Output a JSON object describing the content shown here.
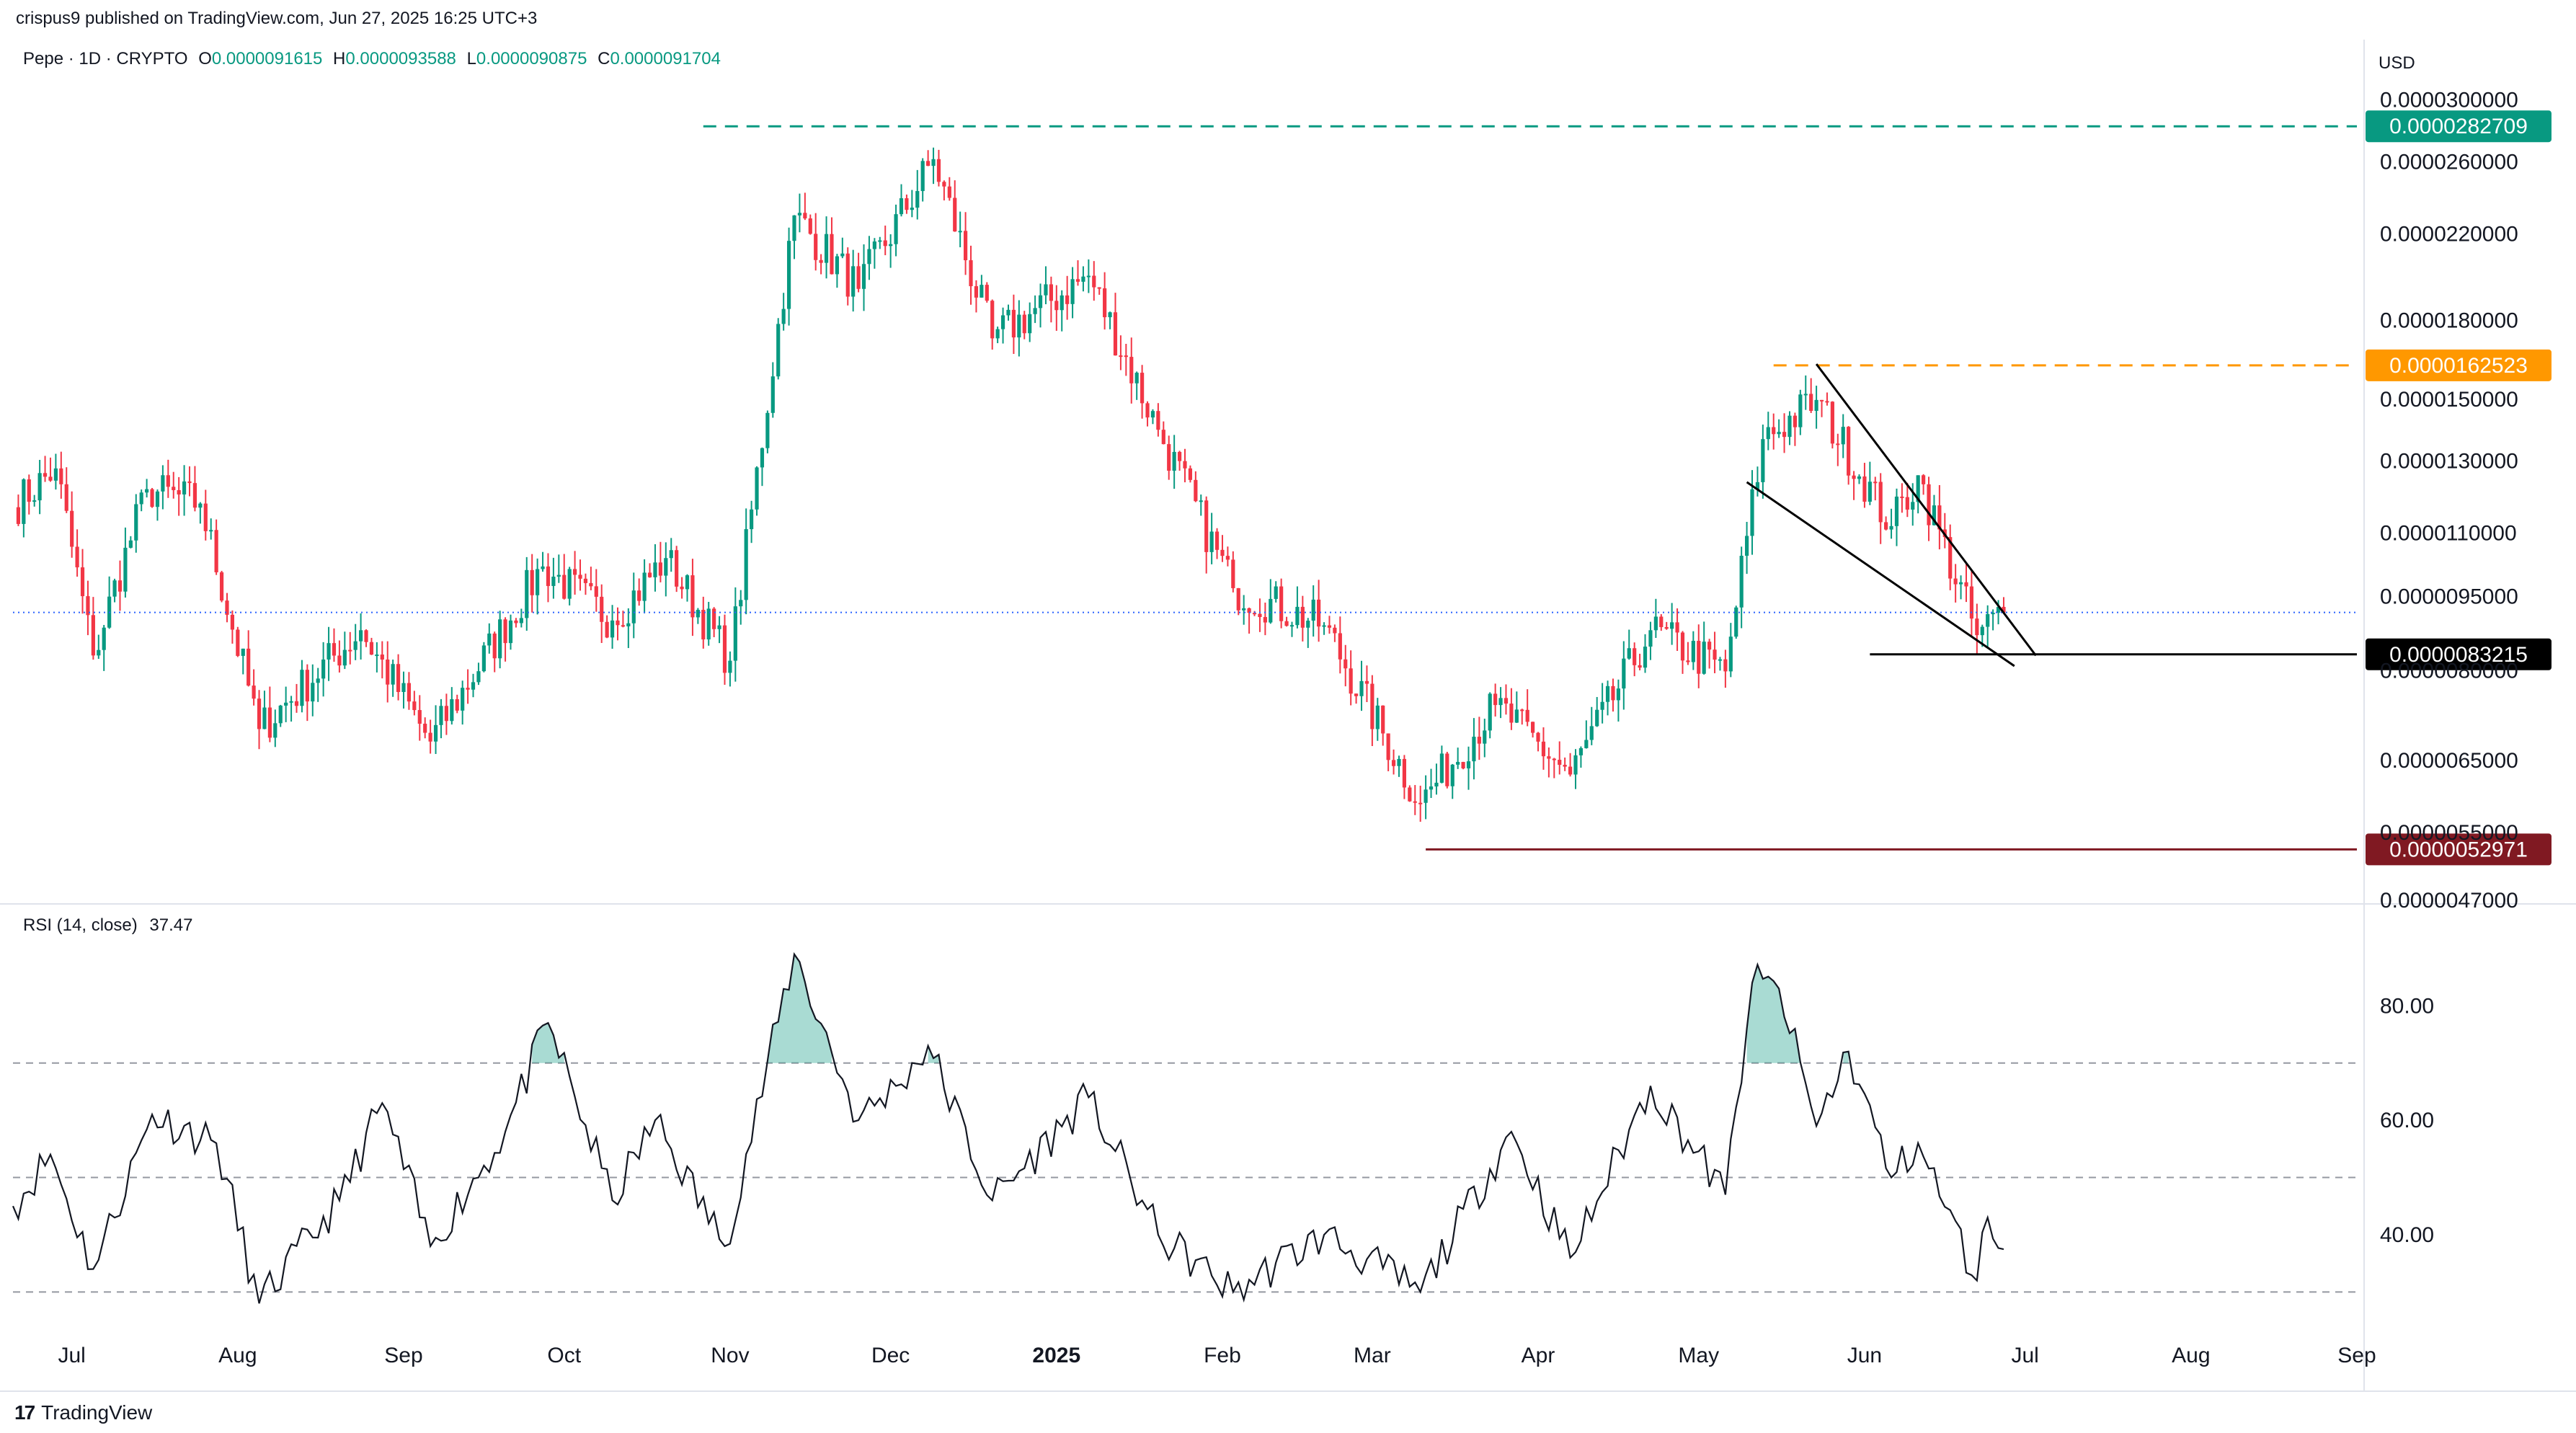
{
  "header": {
    "publisher_text": "crispus9 published on TradingView.com, Jun 27, 2025 16:25 UTC+3"
  },
  "symbol_legend": {
    "symbol": "Pepe · 1D · CRYPTO",
    "o_label": "O",
    "o_value": "0.0000091615",
    "h_label": "H",
    "h_value": "0.0000093588",
    "l_label": "L",
    "l_value": "0.0000090875",
    "c_label": "C",
    "c_value": "0.0000091704"
  },
  "price_axis": {
    "currency": "USD",
    "ticks": [
      "0.0000300000",
      "0.0000260000",
      "0.0000220000",
      "0.0000180000",
      "0.0000150000",
      "0.0000130000",
      "0.0000110000",
      "0.0000095000",
      "0.0000080000",
      "0.0000065000",
      "0.0000055000",
      "0.0000047000"
    ]
  },
  "rsi_legend": {
    "label": "RSI (14, close)",
    "value": "37.47"
  },
  "rsi_axis": {
    "ticks": [
      "80.00",
      "60.00",
      "40.00"
    ]
  },
  "time_axis": {
    "labels": [
      "Jul",
      "Aug",
      "Sep",
      "Oct",
      "Nov",
      "Dec",
      "2025",
      "Feb",
      "Mar",
      "Apr",
      "May",
      "Jun",
      "Jul",
      "Aug",
      "Sep"
    ]
  },
  "footer": {
    "brand": "TradingView",
    "logo": "tv-logo"
  },
  "colors": {
    "up": "#089981",
    "down": "#f23645",
    "green_level": "#089981",
    "orange_level": "#ff9800",
    "red_level": "#801922",
    "black_level": "#000000"
  },
  "chart_data": [
    {
      "type": "candlestick",
      "symbol": "Pepe",
      "timeframe": "1D",
      "y_scale": "log",
      "x_range": [
        "2024-06-20",
        "2025-09-01"
      ],
      "ylim": [
        4.7e-06,
        3.1e-05
      ],
      "anchor_closes": [
        [
          "2024-06-20",
          1.17e-05
        ],
        [
          "2024-06-28",
          1.28e-05
        ],
        [
          "2024-07-05",
          8.3e-06
        ],
        [
          "2024-07-15",
          1.22e-05
        ],
        [
          "2024-07-25",
          1.18e-05
        ],
        [
          "2024-08-05",
          7e-06
        ],
        [
          "2024-08-24",
          8.8e-06
        ],
        [
          "2024-09-06",
          6.8e-06
        ],
        [
          "2024-09-27",
          1.02e-05
        ],
        [
          "2024-10-10",
          9e-06
        ],
        [
          "2024-10-20",
          1.04e-05
        ],
        [
          "2024-11-01",
          8.2e-06
        ],
        [
          "2024-11-13",
          2.3e-05
        ],
        [
          "2024-11-25",
          1.94e-05
        ],
        [
          "2024-12-09",
          2.62e-05
        ],
        [
          "2024-12-20",
          1.73e-05
        ],
        [
          "2025-01-07",
          2e-05
        ],
        [
          "2025-01-20",
          1.4e-05
        ],
        [
          "2025-02-03",
          9.7e-06
        ],
        [
          "2025-02-20",
          8.9e-06
        ],
        [
          "2025-03-10",
          5.9e-06
        ],
        [
          "2025-03-24",
          7.4e-06
        ],
        [
          "2025-04-07",
          6.3e-06
        ],
        [
          "2025-04-22",
          8.8e-06
        ],
        [
          "2025-05-06",
          8e-06
        ],
        [
          "2025-05-13",
          1.37e-05
        ],
        [
          "2025-05-23",
          1.5e-05
        ],
        [
          "2025-06-06",
          1.12e-05
        ],
        [
          "2025-06-11",
          1.26e-05
        ],
        [
          "2025-06-22",
          8.7e-06
        ],
        [
          "2025-06-27",
          9.1704e-06
        ]
      ],
      "levels": [
        {
          "name": "high",
          "value": 2.82709e-05,
          "label": "0.0000282709",
          "style": "dashed",
          "color": "#089981",
          "from": "2024-10-27"
        },
        {
          "name": "resistance",
          "value": 1.62523e-05,
          "label": "0.0000162523",
          "style": "dashed",
          "color": "#ff9800",
          "from": "2025-05-15"
        },
        {
          "name": "support",
          "value": 8.3215e-06,
          "label": "0.0000083215",
          "style": "solid",
          "color": "#000000",
          "from": "2025-06-02"
        },
        {
          "name": "low",
          "value": 5.2971e-06,
          "label": "0.0000052971",
          "style": "solid",
          "color": "#801922",
          "from": "2025-03-11"
        },
        {
          "name": "last",
          "value": 9.1704e-06,
          "style": "dotted",
          "color": "#2962ff"
        }
      ],
      "wedge": {
        "upper": [
          [
            "2025-05-23",
            1.63e-05
          ],
          [
            "2025-07-03",
            8.3e-06
          ]
        ],
        "lower": [
          [
            "2025-05-10",
            1.24e-05
          ],
          [
            "2025-06-29",
            8.1e-06
          ]
        ]
      }
    },
    {
      "type": "line",
      "name": "RSI (14, close)",
      "ylim": [
        24,
        92
      ],
      "bands": [
        30,
        50,
        70
      ],
      "last_value": 37.47,
      "anchors": [
        [
          "2024-06-20",
          45
        ],
        [
          "2024-06-27",
          54
        ],
        [
          "2024-07-05",
          34
        ],
        [
          "2024-07-16",
          61
        ],
        [
          "2024-07-28",
          56
        ],
        [
          "2024-08-05",
          28
        ],
        [
          "2024-08-20",
          46
        ],
        [
          "2024-08-28",
          63
        ],
        [
          "2024-09-06",
          38
        ],
        [
          "2024-09-20",
          58
        ],
        [
          "2024-09-28",
          77
        ],
        [
          "2024-10-10",
          46
        ],
        [
          "2024-10-18",
          60
        ],
        [
          "2024-10-31",
          38
        ],
        [
          "2024-11-13",
          89
        ],
        [
          "2024-11-25",
          60
        ],
        [
          "2024-12-02",
          66
        ],
        [
          "2024-12-08",
          73
        ],
        [
          "2024-12-20",
          46
        ],
        [
          "2025-01-07",
          64
        ],
        [
          "2025-01-20",
          40
        ],
        [
          "2025-02-03",
          30
        ],
        [
          "2025-02-20",
          40
        ],
        [
          "2025-03-10",
          30
        ],
        [
          "2025-03-27",
          58
        ],
        [
          "2025-04-07",
          36
        ],
        [
          "2025-04-22",
          66
        ],
        [
          "2025-05-06",
          47
        ],
        [
          "2025-05-11",
          84
        ],
        [
          "2025-05-16",
          83
        ],
        [
          "2025-05-23",
          59
        ],
        [
          "2025-05-29",
          72
        ],
        [
          "2025-06-06",
          50
        ],
        [
          "2025-06-11",
          56
        ],
        [
          "2025-06-22",
          32
        ],
        [
          "2025-06-24",
          43
        ],
        [
          "2025-06-27",
          37.47
        ]
      ]
    }
  ]
}
